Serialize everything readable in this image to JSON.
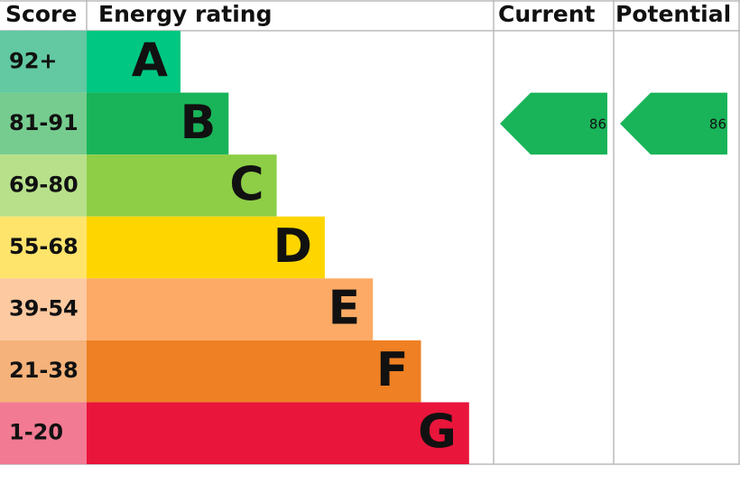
{
  "chart_data": {
    "type": "epc",
    "headers": [
      "Score",
      "Energy rating",
      "Current",
      "Potential"
    ],
    "bands": [
      {
        "score": "92+",
        "letter": "A",
        "color": "#00c781",
        "score_color": "#62c9a2"
      },
      {
        "score": "81-91",
        "letter": "B",
        "color": "#19b459",
        "score_color": "#76cc8f"
      },
      {
        "score": "69-80",
        "letter": "C",
        "color": "#8dce46",
        "score_color": "#b8e08b"
      },
      {
        "score": "55-68",
        "letter": "D",
        "color": "#ffd500",
        "score_color": "#ffe46b"
      },
      {
        "score": "39-54",
        "letter": "E",
        "color": "#fcaa65",
        "score_color": "#fdc9a1"
      },
      {
        "score": "21-38",
        "letter": "F",
        "color": "#ef8023",
        "score_color": "#f5b27a"
      },
      {
        "score": "1-20",
        "letter": "G",
        "color": "#e9153b",
        "score_color": "#f27a93"
      }
    ],
    "current": 86,
    "potential": 86
  }
}
